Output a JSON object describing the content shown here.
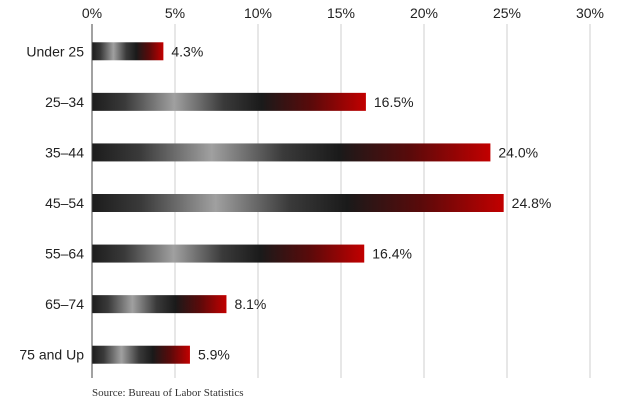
{
  "chart_data": {
    "type": "bar",
    "orientation": "horizontal",
    "categories": [
      "Under 25",
      "25–34",
      "35–44",
      "45–54",
      "55–64",
      "65–74",
      "75 and Up"
    ],
    "values": [
      4.3,
      16.5,
      24.0,
      24.8,
      16.4,
      8.1,
      5.9
    ],
    "value_labels": [
      "4.3%",
      "16.5%",
      "24.0%",
      "24.8%",
      "16.4%",
      "8.1%",
      "5.9%"
    ],
    "x_ticks": [
      0,
      5,
      10,
      15,
      20,
      25,
      30
    ],
    "x_tick_labels": [
      "0%",
      "5%",
      "10%",
      "15%",
      "20%",
      "25%",
      "30%"
    ],
    "xlim": [
      0,
      30
    ],
    "grid": true,
    "xaxis_position": "top",
    "source": "Source: Bureau of Labor Statistics",
    "colors": {
      "dark": "#1a1a1a",
      "light": "#9a9a9a",
      "red": "#b00000"
    }
  }
}
